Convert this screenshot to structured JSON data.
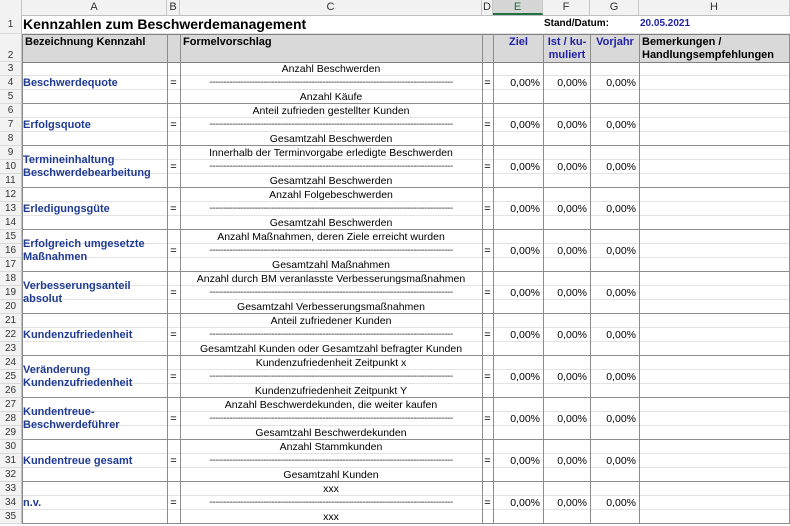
{
  "columns": [
    "A",
    "B",
    "C",
    "D",
    "E",
    "F",
    "G",
    "H"
  ],
  "selected_column": "E",
  "rows": [
    "1",
    "2",
    "3",
    "4",
    "5",
    "6",
    "7",
    "8",
    "9",
    "10",
    "11",
    "12",
    "13",
    "14",
    "15",
    "16",
    "17",
    "18",
    "19",
    "20",
    "21",
    "22",
    "23",
    "24",
    "25",
    "26",
    "27",
    "28",
    "29",
    "30",
    "31",
    "32",
    "33",
    "34",
    "35"
  ],
  "title": "Kennzahlen zum Beschwerdemanagement",
  "stand_label": "Stand/Datum:",
  "stand_value": "20.05.2021",
  "headers": {
    "bezeichnung": "Bezeichnung Kennzahl",
    "formel": "Formelvorschlag",
    "ziel": "Ziel",
    "ist": "Ist / ku-\nmuliert",
    "vorjahr": "Vorjahr",
    "bemerkungen": "Bemerkungen /\nHandlungsempfehlungen"
  },
  "eq": "=",
  "dashes": "--------------------------------------------------------------------------------------",
  "kennzahlen": [
    {
      "name": "Beschwerdequote",
      "num": "Anzahl Beschwerden",
      "den": "Anzahl Käufe",
      "ziel": "0,00%",
      "ist": "0,00%",
      "vorjahr": "0,00%"
    },
    {
      "name": "Erfolgsquote",
      "num": "Anteil zufrieden gestellter Kunden",
      "den": "Gesamtzahl Beschwerden",
      "ziel": "0,00%",
      "ist": "0,00%",
      "vorjahr": "0,00%"
    },
    {
      "name": "Termineinhaltung Beschwerdebearbeitung",
      "num": "Innerhalb der Terminvorgabe erledigte Beschwerden",
      "den": "Gesamtzahl Beschwerden",
      "ziel": "0,00%",
      "ist": "0,00%",
      "vorjahr": "0,00%"
    },
    {
      "name": "Erledigungsgüte",
      "num": "Anzahl Folgebeschwerden",
      "den": "Gesamtzahl Beschwerden",
      "ziel": "0,00%",
      "ist": "0,00%",
      "vorjahr": "0,00%"
    },
    {
      "name": "Erfolgreich umgesetzte Maßnahmen",
      "num": "Anzahl Maßnahmen, deren Ziele erreicht wurden",
      "den": "Gesamtzahl Maßnahmen",
      "ziel": "0,00%",
      "ist": "0,00%",
      "vorjahr": "0,00%"
    },
    {
      "name": "Verbesserungsanteil absolut",
      "num": "Anzahl durch BM veranlasste Verbesserungsmaßnahmen",
      "den": "Gesamtzahl Verbesserungsmaßnahmen",
      "ziel": "0,00%",
      "ist": "0,00%",
      "vorjahr": "0,00%"
    },
    {
      "name": "Kundenzufriedenheit",
      "num": "Anteil zufriedener Kunden",
      "den": "Gesamtzahl Kunden oder Gesamtzahl befragter Kunden",
      "ziel": "0,00%",
      "ist": "0,00%",
      "vorjahr": "0,00%"
    },
    {
      "name": "Veränderung Kundenzufriedenheit",
      "num": "Kundenzufriedenheit Zeitpunkt x",
      "den": "Kundenzufriedenheit Zeitpunkt Y",
      "ziel": "0,00%",
      "ist": "0,00%",
      "vorjahr": "0,00%"
    },
    {
      "name": "Kundentreue-Beschwerdeführer",
      "num": "Anzahl Beschwerdekunden, die weiter kaufen",
      "den": "Gesamtzahl Beschwerdekunden",
      "ziel": "0,00%",
      "ist": "0,00%",
      "vorjahr": "0,00%"
    },
    {
      "name": "Kundentreue gesamt",
      "num": "Anzahl Stammkunden",
      "den": "Gesamtzahl Kunden",
      "ziel": "0,00%",
      "ist": "0,00%",
      "vorjahr": "0,00%"
    },
    {
      "name": "n.v.",
      "num": "xxx",
      "den": "xxx",
      "ziel": "0,00%",
      "ist": "0,00%",
      "vorjahr": "0,00%"
    }
  ]
}
